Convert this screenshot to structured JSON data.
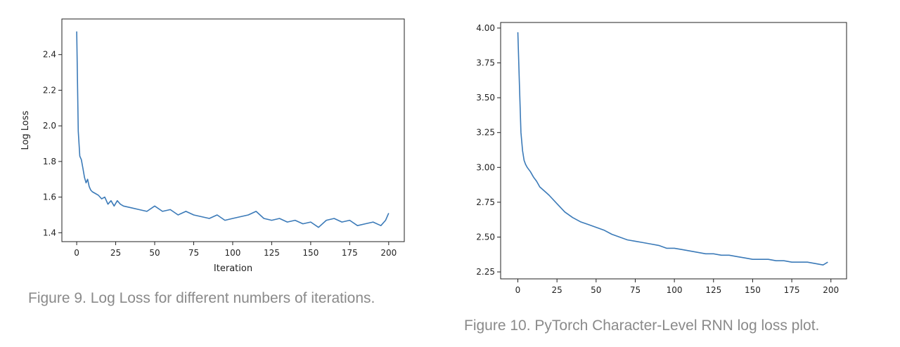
{
  "captions": {
    "left": "Figure 9. Log Loss for different numbers of iterations.",
    "right": "Figure 10. PyTorch Character-Level RNN log loss plot."
  },
  "chart_data": [
    {
      "type": "line",
      "title": "",
      "xlabel": "Iteration",
      "ylabel": "Log Loss",
      "xlim": [
        -9.5,
        210
      ],
      "ylim": [
        1.35,
        2.6
      ],
      "xticks": [
        0,
        25,
        50,
        75,
        100,
        125,
        150,
        175,
        200
      ],
      "yticks": [
        1.4,
        1.6,
        1.8,
        2.0,
        2.2,
        2.4
      ],
      "ytick_labels": [
        "1.4",
        "1.6",
        "1.8",
        "2.0",
        "2.2",
        "2.4"
      ],
      "line_color": "#3b7ab8",
      "grid": false,
      "series": [
        {
          "x": [
            0,
            1,
            2,
            3,
            4,
            5,
            6,
            7,
            8,
            9,
            10,
            12,
            14,
            16,
            18,
            20,
            22,
            24,
            26,
            28,
            30,
            35,
            40,
            45,
            50,
            55,
            60,
            65,
            70,
            75,
            80,
            85,
            90,
            95,
            100,
            105,
            110,
            115,
            120,
            125,
            130,
            135,
            140,
            145,
            150,
            155,
            160,
            165,
            170,
            175,
            180,
            185,
            190,
            195,
            198,
            200
          ],
          "y": [
            2.53,
            1.97,
            1.83,
            1.81,
            1.76,
            1.71,
            1.68,
            1.7,
            1.66,
            1.64,
            1.63,
            1.62,
            1.61,
            1.59,
            1.6,
            1.56,
            1.58,
            1.55,
            1.58,
            1.56,
            1.55,
            1.54,
            1.53,
            1.52,
            1.55,
            1.52,
            1.53,
            1.5,
            1.52,
            1.5,
            1.49,
            1.48,
            1.5,
            1.47,
            1.48,
            1.49,
            1.5,
            1.52,
            1.48,
            1.47,
            1.48,
            1.46,
            1.47,
            1.45,
            1.46,
            1.43,
            1.47,
            1.48,
            1.46,
            1.47,
            1.44,
            1.45,
            1.46,
            1.44,
            1.47,
            1.51
          ]
        }
      ]
    },
    {
      "type": "line",
      "title": "",
      "xlabel": "",
      "ylabel": "",
      "xlim": [
        -11,
        210
      ],
      "ylim": [
        2.2,
        4.04
      ],
      "xticks": [
        0,
        25,
        50,
        75,
        100,
        125,
        150,
        175,
        200
      ],
      "yticks": [
        2.25,
        2.5,
        2.75,
        3.0,
        3.25,
        3.5,
        3.75,
        4.0
      ],
      "ytick_labels": [
        "2.25",
        "2.50",
        "2.75",
        "3.00",
        "3.25",
        "3.50",
        "3.75",
        "4.00"
      ],
      "line_color": "#3b7ab8",
      "grid": false,
      "series": [
        {
          "x": [
            0,
            1,
            2,
            3,
            4,
            5,
            6,
            8,
            10,
            12,
            14,
            16,
            18,
            20,
            25,
            30,
            35,
            40,
            45,
            50,
            55,
            60,
            65,
            70,
            75,
            80,
            85,
            90,
            95,
            100,
            105,
            110,
            115,
            120,
            125,
            130,
            135,
            140,
            145,
            150,
            155,
            160,
            165,
            170,
            175,
            180,
            185,
            190,
            195,
            198
          ],
          "y": [
            3.97,
            3.6,
            3.25,
            3.12,
            3.05,
            3.02,
            3.0,
            2.97,
            2.93,
            2.9,
            2.86,
            2.84,
            2.82,
            2.8,
            2.74,
            2.68,
            2.64,
            2.61,
            2.59,
            2.57,
            2.55,
            2.52,
            2.5,
            2.48,
            2.47,
            2.46,
            2.45,
            2.44,
            2.42,
            2.42,
            2.41,
            2.4,
            2.39,
            2.38,
            2.38,
            2.37,
            2.37,
            2.36,
            2.35,
            2.34,
            2.34,
            2.34,
            2.33,
            2.33,
            2.32,
            2.32,
            2.32,
            2.31,
            2.3,
            2.32
          ]
        }
      ]
    }
  ]
}
